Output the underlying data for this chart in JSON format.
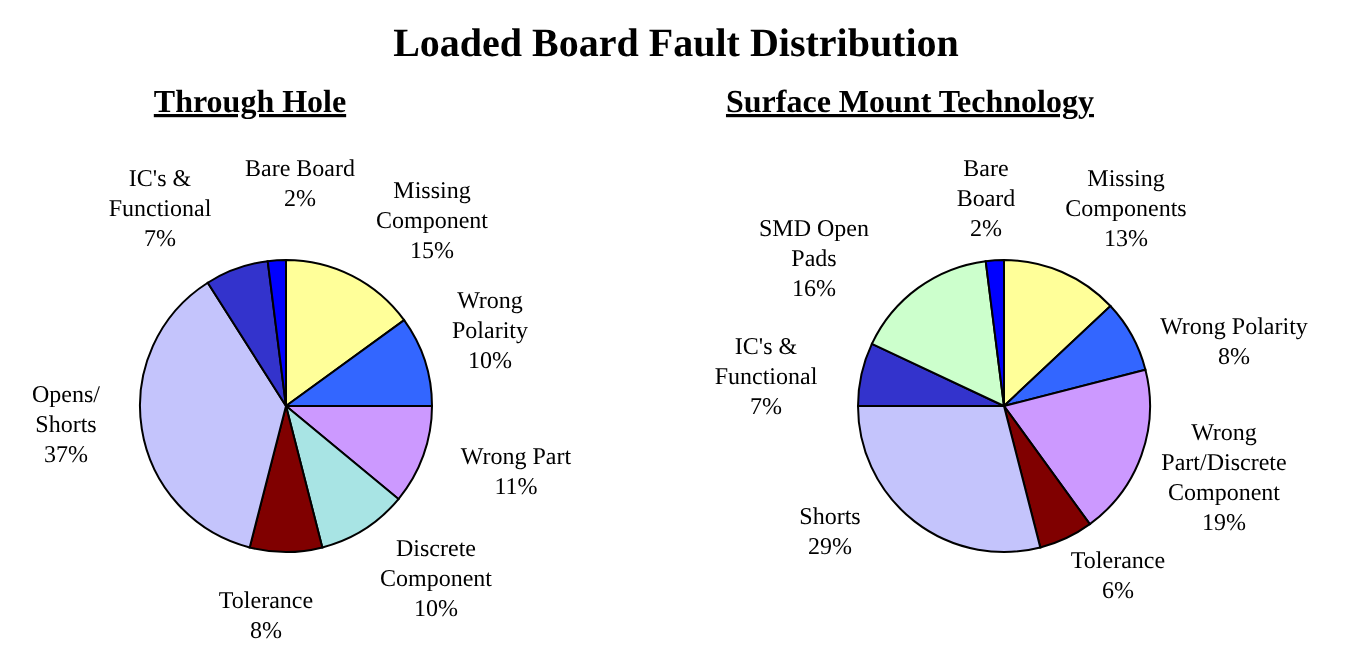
{
  "chart_data": [
    {
      "type": "pie",
      "title": "Loaded Board Fault Distribution",
      "subtitle": "Through Hole",
      "categories": [
        "Missing Component",
        "Wrong Polarity",
        "Wrong Part",
        "Discrete Component",
        "Tolerance",
        "Opens/Shorts",
        "IC's & Functional",
        "Bare Board"
      ],
      "values": [
        15,
        10,
        11,
        10,
        8,
        37,
        7,
        2
      ],
      "value_labels": [
        "15%",
        "10%",
        "11%",
        "10%",
        "8%",
        "37%",
        "7%",
        "2%"
      ],
      "colors": [
        "#ffff99",
        "#3366ff",
        "#cc99ff",
        "#a8e4e4",
        "#800000",
        "#c4c4fc",
        "#3333cc",
        "#0000ff"
      ]
    },
    {
      "type": "pie",
      "subtitle": "Surface Mount Technology",
      "categories": [
        "Missing Components",
        "Wrong Polarity",
        "Wrong Part/Discrete Component",
        "Tolerance",
        "Shorts",
        "IC's & Functional",
        "SMD Open Pads",
        "Bare Board"
      ],
      "values": [
        13,
        8,
        19,
        6,
        29,
        7,
        16,
        2
      ],
      "value_labels": [
        "13%",
        "8%",
        "19%",
        "6%",
        "29%",
        "7%",
        "16%",
        "2%"
      ],
      "colors": [
        "#ffff99",
        "#3366ff",
        "#cc99ff",
        "#800000",
        "#c4c4fc",
        "#3333cc",
        "#ccffcc",
        "#0000ff"
      ]
    }
  ]
}
